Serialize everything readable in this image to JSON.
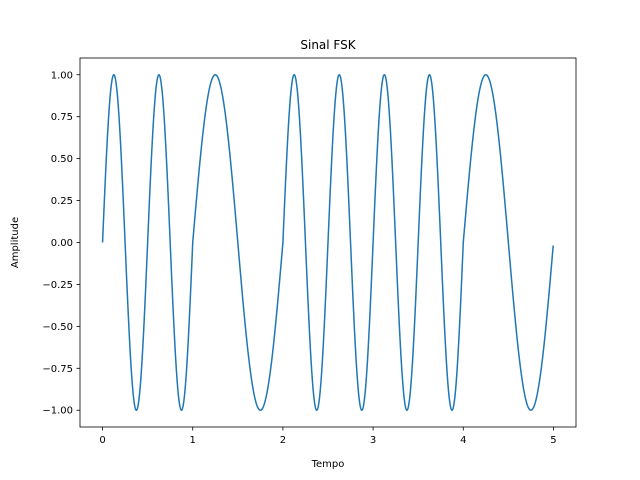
{
  "chart_data": {
    "type": "line",
    "title": "Sinal FSK",
    "xlabel": "Tempo",
    "ylabel": "Amplitude",
    "xlim": [
      -0.25,
      5.25
    ],
    "ylim": [
      -1.1,
      1.1
    ],
    "xticks": [
      0,
      1,
      2,
      3,
      4,
      5
    ],
    "xtick_labels": [
      "0",
      "1",
      "2",
      "3",
      "4",
      "5"
    ],
    "yticks": [
      1.0,
      0.75,
      0.5,
      0.25,
      0.0,
      -0.25,
      -0.5,
      -0.75,
      -1.0
    ],
    "ytick_labels": [
      "1.00",
      "0.75",
      "0.50",
      "0.25",
      "0.00",
      "−0.25",
      "−0.50",
      "−0.75",
      "−1.00"
    ],
    "grid": false,
    "legend": "none",
    "series": [
      {
        "color": "#1f77b4",
        "formula": "sin(2*pi*f*t) per 1-time-unit bit segment, t from 0 to 5",
        "segments": [
          {
            "t_start": 0,
            "t_end": 1,
            "frequency": 2
          },
          {
            "t_start": 1,
            "t_end": 2,
            "frequency": 1
          },
          {
            "t_start": 2,
            "t_end": 3,
            "frequency": 2
          },
          {
            "t_start": 3,
            "t_end": 4,
            "frequency": 2
          },
          {
            "t_start": 4,
            "t_end": 5,
            "frequency": 1
          }
        ]
      }
    ]
  }
}
